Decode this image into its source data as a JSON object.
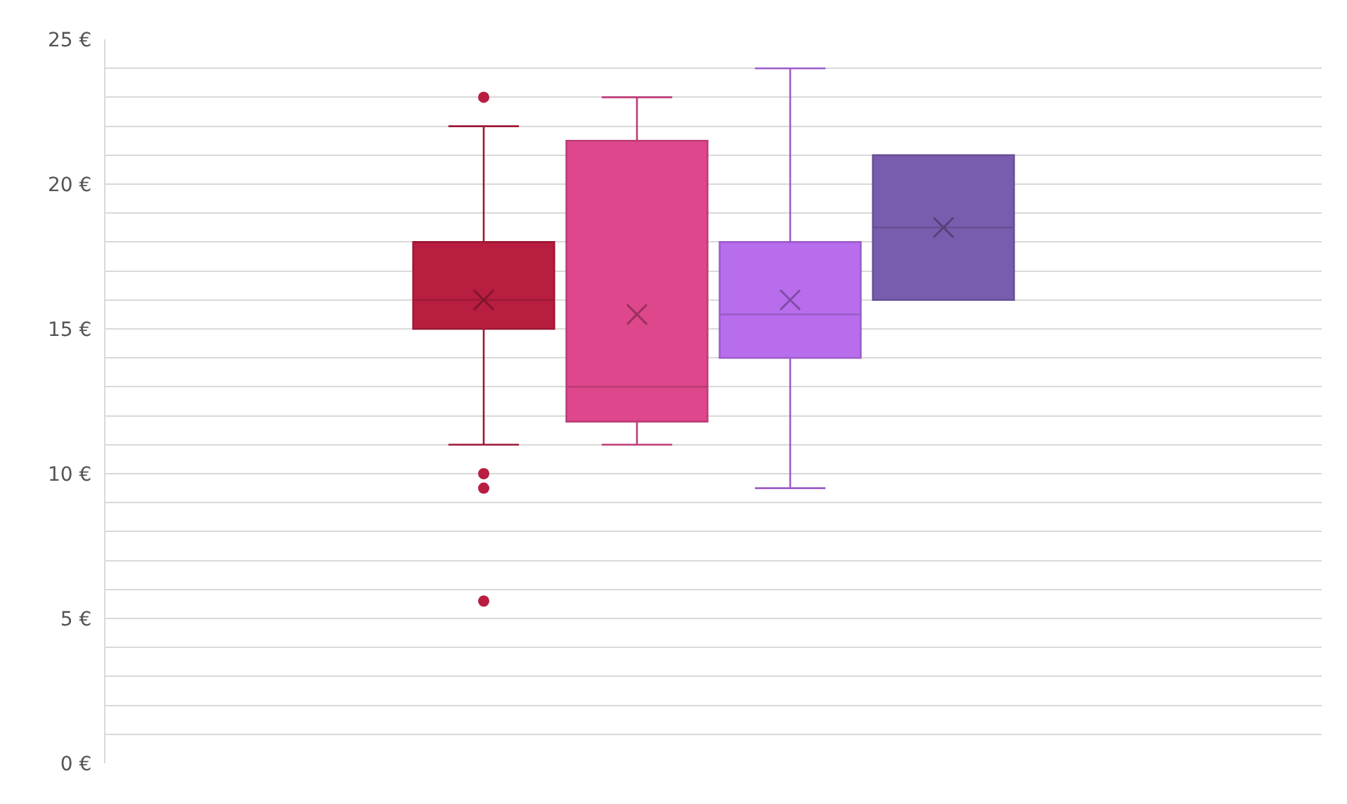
{
  "chart_data": {
    "type": "box",
    "categories": [
      null
    ],
    "series": [
      {
        "color": "#b81e40",
        "boxes": [
          {
            "low": 11,
            "q1": 15,
            "median": 16,
            "q3": 18,
            "high": 22,
            "mean": 16,
            "outliers": [
              23,
              10,
              9.5,
              5.6
            ]
          }
        ]
      },
      {
        "color": "#de478b",
        "boxes": [
          {
            "low": 11,
            "q1": 11.8,
            "median": 13,
            "q3": 21.5,
            "high": 23,
            "mean": 15.5
          }
        ]
      },
      {
        "color": "#b86ded",
        "boxes": [
          {
            "low": 9.5,
            "q1": 14,
            "median": 15.5,
            "q3": 18,
            "high": 24,
            "mean": 16
          }
        ]
      },
      {
        "color": "#785dae",
        "boxes": [
          {
            "low": 16,
            "q1": 16,
            "median": 18.5,
            "q3": 21,
            "high": 21,
            "mean": 18.5
          }
        ]
      }
    ],
    "ylim": [
      0,
      25
    ],
    "yticks": [
      {
        "value": 0,
        "label": "0 €"
      },
      {
        "value": 1,
        "label": null
      },
      {
        "value": 2,
        "label": null
      },
      {
        "value": 3,
        "label": null
      },
      {
        "value": 4,
        "label": null
      },
      {
        "value": 5,
        "label": "5 €"
      },
      {
        "value": 6,
        "label": null
      },
      {
        "value": 7,
        "label": null
      },
      {
        "value": 8,
        "label": null
      },
      {
        "value": 9,
        "label": null
      },
      {
        "value": 10,
        "label": "10 €"
      },
      {
        "value": 11,
        "label": null
      },
      {
        "value": 12,
        "label": null
      },
      {
        "value": 13,
        "label": null
      },
      {
        "value": 14,
        "label": null
      },
      {
        "value": 15,
        "label": "15 €"
      },
      {
        "value": 16,
        "label": null
      },
      {
        "value": 17,
        "label": null
      },
      {
        "value": 18,
        "label": null
      },
      {
        "value": 19,
        "label": null
      },
      {
        "value": 20,
        "label": "20 €"
      },
      {
        "value": 21,
        "label": null
      },
      {
        "value": 22,
        "label": null
      },
      {
        "value": 23,
        "label": null
      },
      {
        "value": 24,
        "label": null
      },
      {
        "value": 25,
        "label": "25 €"
      }
    ],
    "grid": "y",
    "tick_labels": "y"
  }
}
